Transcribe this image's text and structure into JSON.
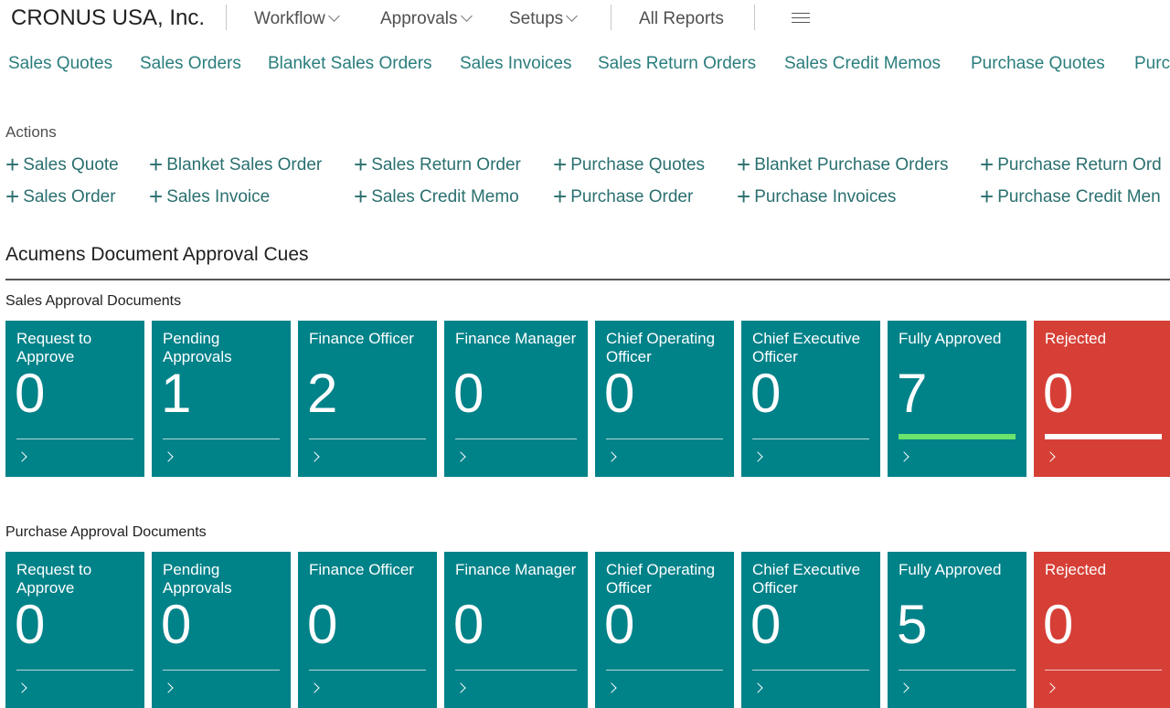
{
  "header": {
    "company": "CRONUS USA, Inc.",
    "menus": [
      "Workflow",
      "Approvals",
      "Setups"
    ],
    "all_reports": "All Reports",
    "menu_icon": "hamburger-icon"
  },
  "nav": [
    "Sales Quotes",
    "Sales Orders",
    "Blanket Sales Orders",
    "Sales Invoices",
    "Sales Return Orders",
    "Sales Credit Memos",
    "Purchase Quotes",
    "Purc"
  ],
  "actions": {
    "label": "Actions",
    "items": [
      "Sales Quote",
      "Blanket Sales Order",
      "Sales Return Order",
      "Purchase Quotes",
      "Blanket Purchase Orders",
      "Purchase Return Ord",
      "Sales Order",
      "Sales Invoice",
      "Sales Credit Memo",
      "Purchase Order",
      "Purchase Invoices",
      "Purchase Credit Men"
    ]
  },
  "cues": {
    "title": "Acumens Document Approval Cues",
    "colors": {
      "teal": "#008289",
      "red": "#d63f36",
      "green_bar": "#6ce36c"
    },
    "groups": [
      {
        "title": "Sales Approval Documents",
        "tiles": [
          {
            "label": "Request to Approve",
            "value": "0"
          },
          {
            "label": "Pending Approvals",
            "value": "1"
          },
          {
            "label": "Finance Officer",
            "value": "2"
          },
          {
            "label": "Finance Manager",
            "value": "0"
          },
          {
            "label": "Chief Operating Officer",
            "value": "0"
          },
          {
            "label": "Chief Executive Officer",
            "value": "0"
          },
          {
            "label": "Fully Approved",
            "value": "7"
          },
          {
            "label": "Rejected",
            "value": "0"
          }
        ]
      },
      {
        "title": "Purchase Approval Documents",
        "tiles": [
          {
            "label": "Request to Approve",
            "value": "0"
          },
          {
            "label": "Pending Approvals",
            "value": "0"
          },
          {
            "label": "Finance Officer",
            "value": "0"
          },
          {
            "label": "Finance Manager",
            "value": "0"
          },
          {
            "label": "Chief Operating Officer",
            "value": "0"
          },
          {
            "label": "Chief Executive Officer",
            "value": "0"
          },
          {
            "label": "Fully Approved",
            "value": "5"
          },
          {
            "label": "Rejected",
            "value": "0"
          }
        ]
      }
    ]
  }
}
